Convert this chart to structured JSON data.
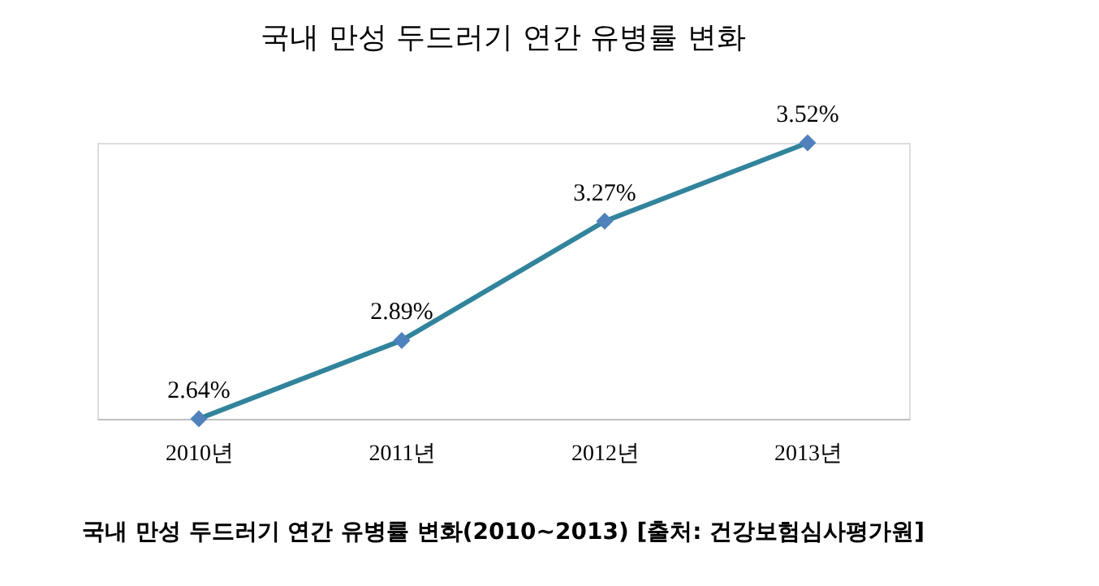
{
  "chart_data": {
    "type": "line",
    "title": "국내 만성 두드러기 연간 유병률 변화",
    "categories": [
      "2010년",
      "2011년",
      "2012년",
      "2013년"
    ],
    "series": [
      {
        "color": "#31849b",
        "values": [
          2.64,
          2.89,
          3.27,
          3.52
        ],
        "value_labels": [
          "2.64%",
          "2.89%",
          "3.27%",
          "3.52%"
        ]
      }
    ],
    "marker": "diamond",
    "line_style": "solid",
    "grid": false,
    "legend": false,
    "tick_labels": "x",
    "annotations": [
      "국내 만성 두드러기 연간 유병률 변화(2010~2013) [출처: 건강보험심사평가원]"
    ]
  }
}
